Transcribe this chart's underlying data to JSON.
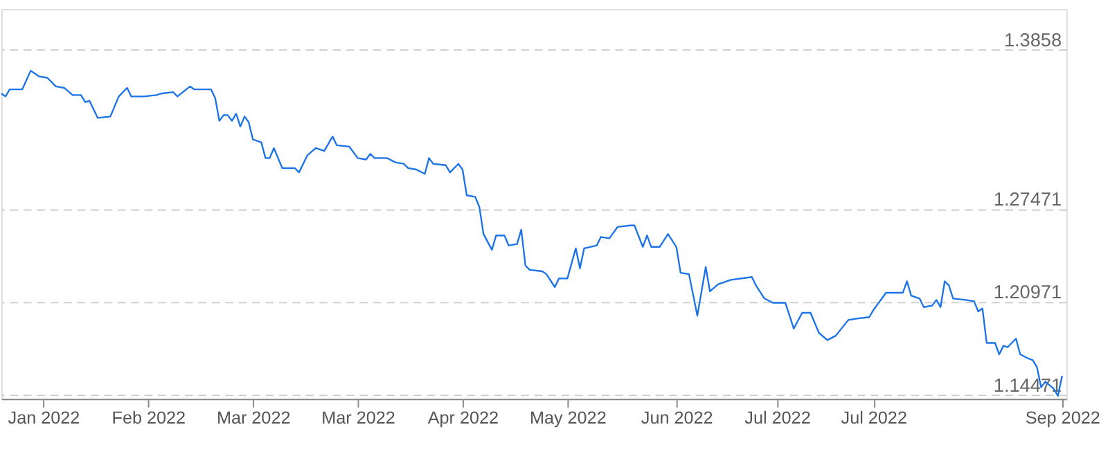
{
  "chart_data": {
    "type": "line",
    "x": [
      "2022-01-01",
      "2022-01-02",
      "2022-01-03",
      "2022-01-06",
      "2022-01-08",
      "2022-01-10",
      "2022-01-12",
      "2022-01-14",
      "2022-01-16",
      "2022-01-18",
      "2022-01-20",
      "2022-01-21",
      "2022-01-22",
      "2022-01-24",
      "2022-01-27",
      "2022-01-29",
      "2022-01-31",
      "2022-02-01",
      "2022-02-04",
      "2022-02-07",
      "2022-02-08",
      "2022-02-11",
      "2022-02-12",
      "2022-02-15",
      "2022-02-16",
      "2022-02-20",
      "2022-02-21",
      "2022-02-22",
      "2022-02-23",
      "2022-02-24",
      "2022-02-25",
      "2022-02-26",
      "2022-02-27",
      "2022-02-28",
      "2022-03-01",
      "2022-03-02",
      "2022-03-04",
      "2022-03-05",
      "2022-03-06",
      "2022-03-07",
      "2022-03-09",
      "2022-03-12",
      "2022-03-13",
      "2022-03-15",
      "2022-03-17",
      "2022-03-19",
      "2022-03-21",
      "2022-03-22",
      "2022-03-25",
      "2022-03-27",
      "2022-03-29",
      "2022-03-30",
      "2022-03-31",
      "2022-04-02",
      "2022-04-03",
      "2022-04-05",
      "2022-04-07",
      "2022-04-08",
      "2022-04-10",
      "2022-04-12",
      "2022-04-13",
      "2022-04-14",
      "2022-04-17",
      "2022-04-18",
      "2022-04-20",
      "2022-04-21",
      "2022-04-22",
      "2022-04-24",
      "2022-04-25",
      "2022-04-26",
      "2022-04-28",
      "2022-04-29",
      "2022-05-01",
      "2022-05-02",
      "2022-05-04",
      "2022-05-05",
      "2022-05-06",
      "2022-05-07",
      "2022-05-10",
      "2022-05-11",
      "2022-05-13",
      "2022-05-14",
      "2022-05-16",
      "2022-05-18",
      "2022-05-19",
      "2022-05-20",
      "2022-05-23",
      "2022-05-24",
      "2022-05-26",
      "2022-05-28",
      "2022-05-31",
      "2022-06-01",
      "2022-06-03",
      "2022-06-04",
      "2022-06-05",
      "2022-06-07",
      "2022-06-09",
      "2022-06-11",
      "2022-06-12",
      "2022-06-14",
      "2022-06-16",
      "2022-06-18",
      "2022-06-19",
      "2022-06-21",
      "2022-06-24",
      "2022-06-29",
      "2022-06-30",
      "2022-07-02",
      "2022-07-04",
      "2022-07-07",
      "2022-07-09",
      "2022-07-11",
      "2022-07-13",
      "2022-07-15",
      "2022-07-17",
      "2022-07-19",
      "2022-07-22",
      "2022-07-24",
      "2022-07-27",
      "2022-07-28",
      "2022-07-31",
      "2022-08-04",
      "2022-08-05",
      "2022-08-06",
      "2022-08-08",
      "2022-08-09",
      "2022-08-11",
      "2022-08-12",
      "2022-08-13",
      "2022-08-14",
      "2022-08-15",
      "2022-08-16",
      "2022-08-19",
      "2022-08-21",
      "2022-08-22",
      "2022-08-23",
      "2022-08-24",
      "2022-08-26",
      "2022-08-27",
      "2022-08-28",
      "2022-08-29",
      "2022-08-31",
      "2022-09-01",
      "2022-09-03",
      "2022-09-04",
      "2022-09-05",
      "2022-09-06",
      "2022-09-07",
      "2022-09-09",
      "2022-09-10",
      "2022-09-11"
    ],
    "series": [
      {
        "color": "#1a73e8",
        "values": [
          1.355,
          1.353,
          1.358,
          1.358,
          1.371,
          1.367,
          1.366,
          1.36,
          1.359,
          1.354,
          1.354,
          1.349,
          1.35,
          1.338,
          1.339,
          1.353,
          1.359,
          1.353,
          1.353,
          1.354,
          1.355,
          1.356,
          1.353,
          1.36,
          1.358,
          1.358,
          1.352,
          1.336,
          1.34,
          1.34,
          1.336,
          1.341,
          1.332,
          1.339,
          1.335,
          1.323,
          1.321,
          1.31,
          1.31,
          1.317,
          1.303,
          1.303,
          1.3,
          1.312,
          1.317,
          1.315,
          1.325,
          1.319,
          1.318,
          1.31,
          1.309,
          1.313,
          1.31,
          1.31,
          1.31,
          1.307,
          1.306,
          1.303,
          1.302,
          1.299,
          1.31,
          1.306,
          1.305,
          1.3,
          1.306,
          1.302,
          1.284,
          1.283,
          1.276,
          1.257,
          1.246,
          1.256,
          1.256,
          1.249,
          1.25,
          1.26,
          1.235,
          1.232,
          1.231,
          1.229,
          1.22,
          1.226,
          1.226,
          1.247,
          1.233,
          1.247,
          1.249,
          1.255,
          1.254,
          1.262,
          1.263,
          1.263,
          1.248,
          1.256,
          1.248,
          1.248,
          1.257,
          1.248,
          1.23,
          1.229,
          1.2,
          1.234,
          1.217,
          1.222,
          1.225,
          1.227,
          1.221,
          1.212,
          1.209,
          1.209,
          1.191,
          1.202,
          1.202,
          1.188,
          1.183,
          1.186,
          1.197,
          1.198,
          1.199,
          1.204,
          1.216,
          1.216,
          1.224,
          1.214,
          1.212,
          1.206,
          1.207,
          1.211,
          1.206,
          1.224,
          1.221,
          1.212,
          1.211,
          1.21,
          1.203,
          1.205,
          1.181,
          1.181,
          1.173,
          1.179,
          1.178,
          1.184,
          1.173,
          1.17,
          1.169,
          1.164,
          1.15,
          1.154,
          1.149,
          1.144,
          1.158
        ]
      }
    ],
    "xlim": [
      "2022-01-01",
      "2022-09-12"
    ],
    "xticks": [
      {
        "value": "2022-01-11",
        "label": "Jan 2022"
      },
      {
        "value": "2022-02-05",
        "label": "Feb 2022"
      },
      {
        "value": "2022-03-02",
        "label": "Mar 2022"
      },
      {
        "value": "2022-03-27",
        "label": "Mar 2022"
      },
      {
        "value": "2022-04-21",
        "label": "Apr 2022"
      },
      {
        "value": "2022-05-16",
        "label": "May 2022"
      },
      {
        "value": "2022-06-11",
        "label": "Jun 2022"
      },
      {
        "value": "2022-07-05",
        "label": "Jul 2022"
      },
      {
        "value": "2022-07-28",
        "label": "Jul 2022"
      },
      {
        "value": "2022-09-11",
        "label": "Sep 2022"
      }
    ],
    "ylim": [
      1.142,
      1.414
    ],
    "yticks": [
      1.3858,
      1.27471,
      1.20971,
      1.14471
    ],
    "grid": "y",
    "line_style": "solid",
    "marker": "none"
  }
}
